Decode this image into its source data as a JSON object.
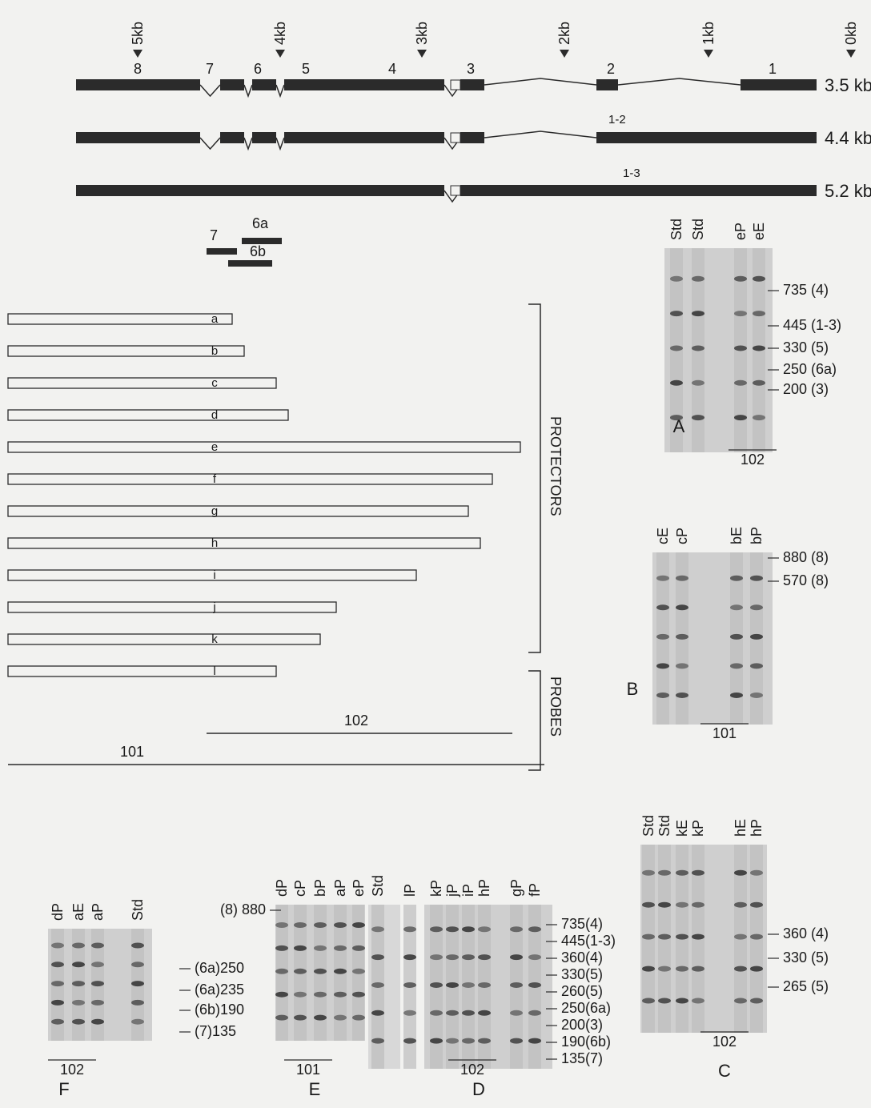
{
  "scale": {
    "markers": [
      "5kb",
      "4kb",
      "3kb",
      "2kb",
      "1kb",
      "0kb"
    ]
  },
  "transcripts": [
    {
      "size": "3.5 kb",
      "exons": [
        "8",
        "7",
        "6",
        "5",
        "4",
        "3",
        "2",
        "1"
      ]
    },
    {
      "size": "4.4 kb",
      "junction": "1-2"
    },
    {
      "size": "5.2 kb",
      "junction": "1-3"
    }
  ],
  "probes": {
    "small": [
      "7",
      "6a",
      "6b"
    ],
    "protectors": [
      "a",
      "b",
      "c",
      "d",
      "e",
      "f",
      "g",
      "h",
      "i",
      "j",
      "k",
      "l"
    ],
    "probe_102": "102",
    "probe_101": "101",
    "protectors_label": "PROTECTORS",
    "probes_label": "PROBES"
  },
  "panels": [
    {
      "label": "A",
      "lanes": [
        "Std",
        "Std",
        "eP",
        "eE"
      ],
      "bands": [
        "735 (4)",
        "445 (1-3)",
        "330 (5)",
        "250 (6a)",
        "200 (3)"
      ],
      "probe": "102"
    },
    {
      "label": "B",
      "lanes": [
        "cE",
        "cP",
        "bE",
        "bP"
      ],
      "bands": [
        "880 (8)",
        "570 (8)"
      ],
      "probe": "101"
    },
    {
      "label": "C",
      "lanes": [
        "Std",
        "Std",
        "kE",
        "kP",
        "hE",
        "hP"
      ],
      "bands": [
        "360 (4)",
        "330 (5)",
        "265 (5)"
      ],
      "probe": "102"
    },
    {
      "label": "D",
      "lanes": [
        "Std",
        "lP",
        "kP",
        "jP",
        "iP",
        "hP",
        "gP",
        "fP"
      ],
      "bands": [
        "735(4)",
        "445(1-3)",
        "360(4)",
        "330(5)",
        "260(5)",
        "250(6a)",
        "200(3)",
        "190(6b)",
        "135(7)"
      ],
      "probe": "102"
    },
    {
      "label": "E",
      "lanes": [
        "dP",
        "cP",
        "bP",
        "aP",
        "eP"
      ],
      "bands": [
        "(8) 880"
      ],
      "probe": "101"
    },
    {
      "label": "F",
      "lanes": [
        "dP",
        "aE",
        "aP",
        "Std"
      ],
      "bands": [
        "(6a)250",
        "(6a)235",
        "(6b)190",
        "(7)135"
      ],
      "probe": "102"
    }
  ]
}
